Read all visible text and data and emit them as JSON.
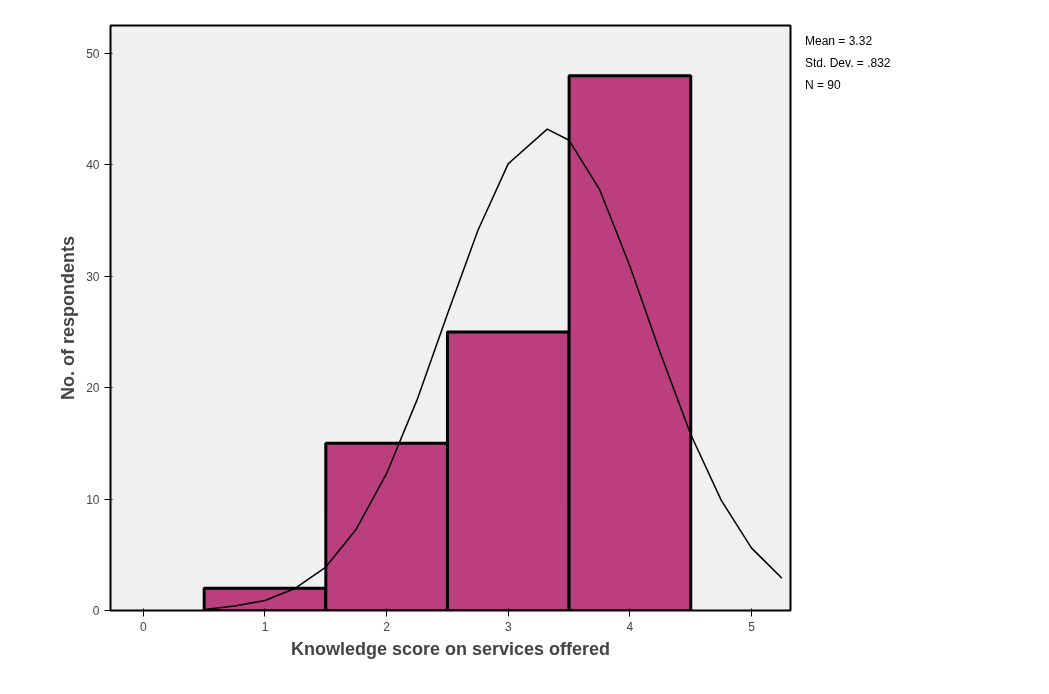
{
  "chart_data": {
    "type": "histogram",
    "xlabel": "Knowledge score on services offered",
    "ylabel": "No. of respondents",
    "bins": [
      0.5,
      1.5,
      2.5,
      3.5,
      4.5
    ],
    "values": [
      2,
      15,
      25,
      48
    ],
    "color": "#bb3f7e",
    "series": [
      {
        "type": "line",
        "color": "#000000",
        "x": [
          0.5,
          0.75,
          1,
          1.25,
          1.5,
          1.75,
          2,
          2.25,
          2.5,
          2.75,
          3,
          3.32,
          3.5,
          3.75,
          4,
          4.25,
          4.5,
          4.75,
          5,
          5.25
        ],
        "values": [
          0.1,
          0.4,
          0.9,
          2,
          3.9,
          7.3,
          12.3,
          18.9,
          26.6,
          34.1,
          40.1,
          43.2,
          42.2,
          37.8,
          30.9,
          23.1,
          15.8,
          9.9,
          5.6,
          2.9
        ]
      }
    ],
    "xlim": [
      -0.27,
      5.32
    ],
    "ylim": [
      0,
      52.5
    ],
    "xticks": [
      0,
      1,
      2,
      3,
      4,
      5
    ],
    "yticks": [
      0,
      10,
      20,
      30,
      40,
      50
    ],
    "grid": false,
    "line_style": "solid",
    "marker": "none",
    "annotations": [
      "Mean = 3.32",
      "Std. Dev. = .832",
      "N = 90"
    ]
  }
}
